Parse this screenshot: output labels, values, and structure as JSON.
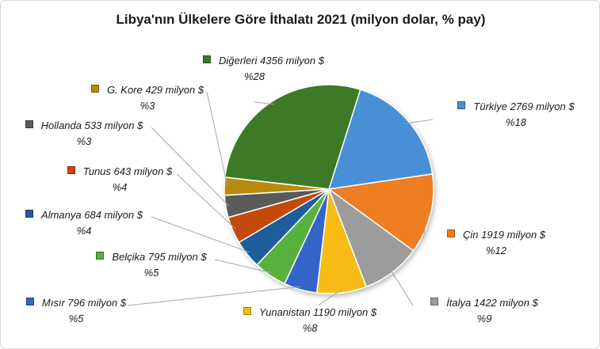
{
  "chart_data": {
    "type": "pie",
    "title": "Libya'nın Ülkelere Göre İthalatı 2021 (milyon dolar, % pay)",
    "unit": "milyon $",
    "slices": [
      {
        "name": "Türkiye",
        "value": 2769,
        "percent": 18,
        "color": "#4a8fd6",
        "label_main": "Türkiye 2769 milyon $",
        "label_pct": "%18"
      },
      {
        "name": "Çin",
        "value": 1919,
        "percent": 12,
        "color": "#ef7d22",
        "label_main": "Çin 1919 milyon $",
        "label_pct": "%12"
      },
      {
        "name": "İtalya",
        "value": 1422,
        "percent": 9,
        "color": "#9c9c9c",
        "label_main": "İtalya 1422 milyon $",
        "label_pct": "%9"
      },
      {
        "name": "Yunanistan",
        "value": 1190,
        "percent": 8,
        "color": "#f7bd12",
        "label_main": "Yunanistan 1190 milyon $",
        "label_pct": "%8"
      },
      {
        "name": "Mısır",
        "value": 796,
        "percent": 5,
        "color": "#3565c9",
        "label_main": "Mısır 796 milyon $",
        "label_pct": "%5"
      },
      {
        "name": "Belçika",
        "value": 795,
        "percent": 5,
        "color": "#58b13e",
        "label_main": "Belçika 795 milyon $",
        "label_pct": "%5"
      },
      {
        "name": "Almanya",
        "value": 684,
        "percent": 4,
        "color": "#1e5d9c",
        "label_main": "Almanya 684 milyon $",
        "label_pct": "%4"
      },
      {
        "name": "Tunus",
        "value": 643,
        "percent": 4,
        "color": "#c4490e",
        "label_main": "Tunus 643 milyon $",
        "label_pct": "%4"
      },
      {
        "name": "Hollanda",
        "value": 533,
        "percent": 3,
        "color": "#5a5a5a",
        "label_main": "Hollanda 533 milyon $",
        "label_pct": "%3"
      },
      {
        "name": "G. Kore",
        "value": 429,
        "percent": 3,
        "color": "#b88a08",
        "label_main": "G. Kore 429 milyon $",
        "label_pct": "%3"
      },
      {
        "name": "Diğerleri",
        "value": 4356,
        "percent": 28,
        "color": "#3d7a25",
        "label_main": "Diğerleri 4356 milyon $",
        "label_pct": "%28"
      }
    ]
  }
}
